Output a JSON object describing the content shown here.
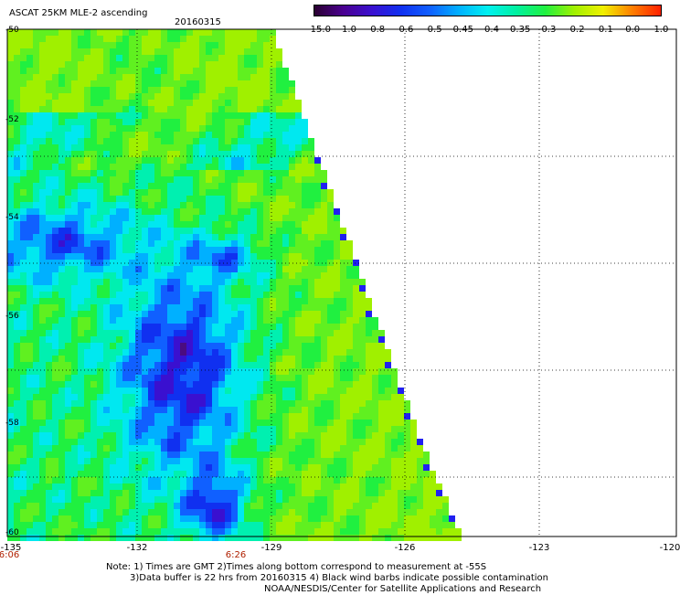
{
  "header": {
    "title": "ASCAT 25KM MLE-2 ascending",
    "date": "20160315"
  },
  "colorbar": {
    "labels": [
      "-15.0",
      "-1.0",
      "-0.8",
      "-0.6",
      "-0.5",
      "-0.45",
      "-0.4",
      "-0.35",
      "-0.3",
      "-0.2",
      "-0.1",
      "0.0",
      "1.0"
    ],
    "colors": [
      "#2a0030",
      "#4a0090",
      "#3a10d0",
      "#1030f0",
      "#1060ff",
      "#00b0ff",
      "#00f0f0",
      "#00f0a0",
      "#20f040",
      "#a0f000",
      "#f0f000",
      "#ff8000",
      "#ff2000"
    ]
  },
  "map": {
    "lat_labels": [
      "-50",
      "-52",
      "-54",
      "-56",
      "-58",
      "-60"
    ],
    "lon_labels": [
      "-135",
      "-132",
      "-129",
      "-126",
      "-123",
      "-120"
    ],
    "time_labels": [
      "6:06",
      "6:26"
    ]
  },
  "notes": {
    "line1": "Note: 1) Times are GMT 2)Times along bottom correspond to measurement at -55S",
    "line2": "3)Data buffer is 22 hrs from 20160315 4) Black wind barbs indicate possible contamination",
    "line3": "NOAA/NESDIS/Center for Satellite Applications and Research"
  }
}
